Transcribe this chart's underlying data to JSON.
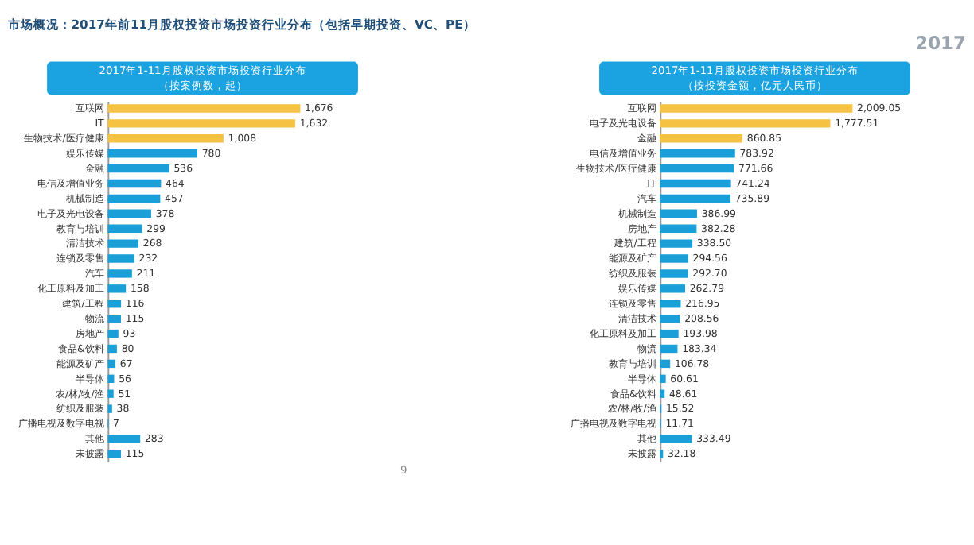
{
  "chart_data": [
    {
      "type": "bar",
      "orientation": "horizontal",
      "title": "2017年1-11月股权投资市场投资行业分布（按案例数，起）",
      "annotations": [
        "市场概况：2017年前11月股权投资市场投资行业分布（包括早期投资、VC、PE）",
        "9"
      ],
      "categories": [
        "互联网",
        "IT",
        "生物技术/医疗健康",
        "娱乐传媒",
        "金融",
        "电信及增值业务",
        "机械制造",
        "电子及光电设备",
        "教育与培训",
        "清洁技术",
        "连锁及零售",
        "汽车",
        "化工原料及加工",
        "建筑/工程",
        "物流",
        "房地产",
        "食品&饮料",
        "能源及矿产",
        "半导体",
        "农/林/牧/渔",
        "纺织及服装",
        "广播电视及数字电视",
        "其他",
        "未披露"
      ],
      "values": [
        1676,
        1632,
        1008,
        780,
        536,
        464,
        457,
        378,
        299,
        268,
        232,
        211,
        158,
        116,
        115,
        93,
        80,
        67,
        56,
        51,
        38,
        7,
        283,
        115
      ],
      "value_labels": [
        "1,676",
        "1,632",
        "1,008",
        "780",
        "536",
        "464",
        "457",
        "378",
        "299",
        "268",
        "232",
        "211",
        "158",
        "116",
        "115",
        "93",
        "80",
        "67",
        "56",
        "51",
        "38",
        "7",
        "283",
        "115"
      ],
      "colors": [
        "#f5c242",
        "#f5c242",
        "#f5c242",
        "#1a9fd8",
        "#1a9fd8",
        "#1a9fd8",
        "#1a9fd8",
        "#1a9fd8",
        "#1a9fd8",
        "#1a9fd8",
        "#1a9fd8",
        "#1a9fd8",
        "#1a9fd8",
        "#1a9fd8",
        "#1a9fd8",
        "#1a9fd8",
        "#1a9fd8",
        "#1a9fd8",
        "#1a9fd8",
        "#1a9fd8",
        "#1a9fd8",
        "#1a9fd8",
        "#1a9fd8",
        "#1a9fd8"
      ],
      "tick_labels": "y",
      "grid": false,
      "legend": false
    },
    {
      "type": "bar",
      "orientation": "horizontal",
      "title": "2017年1-11月股权投资市场投资行业分布（按投资金额，亿元人民币）",
      "annotations": [
        "2017"
      ],
      "categories": [
        "互联网",
        "电子及光电设备",
        "金融",
        "电信及增值业务",
        "生物技术/医疗健康",
        "IT",
        "汽车",
        "机械制造",
        "房地产",
        "建筑/工程",
        "能源及矿产",
        "纺织及服装",
        "娱乐传媒",
        "连锁及零售",
        "清洁技术",
        "化工原料及加工",
        "物流",
        "教育与培训",
        "半导体",
        "食品&饮料",
        "农/林/牧/渔",
        "广播电视及数字电视",
        "其他",
        "未披露"
      ],
      "values": [
        2009.05,
        1777.51,
        860.85,
        783.92,
        771.66,
        741.24,
        735.89,
        386.99,
        382.28,
        338.5,
        294.56,
        292.7,
        262.79,
        216.95,
        208.56,
        193.98,
        183.34,
        106.78,
        60.61,
        48.61,
        15.52,
        11.71,
        333.49,
        32.18
      ],
      "value_labels": [
        "2,009.05",
        "1,777.51",
        "860.85",
        "783.92",
        "771.66",
        "741.24",
        "735.89",
        "386.99",
        "382.28",
        "338.50",
        "294.56",
        "292.70",
        "262.79",
        "216.95",
        "208.56",
        "193.98",
        "183.34",
        "106.78",
        "60.61",
        "48.61",
        "15.52",
        "11.71",
        "333.49",
        "32.18"
      ],
      "colors": [
        "#f5c242",
        "#f5c242",
        "#f5c242",
        "#1a9fd8",
        "#1a9fd8",
        "#1a9fd8",
        "#1a9fd8",
        "#1a9fd8",
        "#1a9fd8",
        "#1a9fd8",
        "#1a9fd8",
        "#1a9fd8",
        "#1a9fd8",
        "#1a9fd8",
        "#1a9fd8",
        "#1a9fd8",
        "#1a9fd8",
        "#1a9fd8",
        "#1a9fd8",
        "#1a9fd8",
        "#1a9fd8",
        "#1a9fd8",
        "#1a9fd8",
        "#1a9fd8"
      ],
      "tick_labels": "y",
      "grid": false,
      "legend": false
    }
  ]
}
